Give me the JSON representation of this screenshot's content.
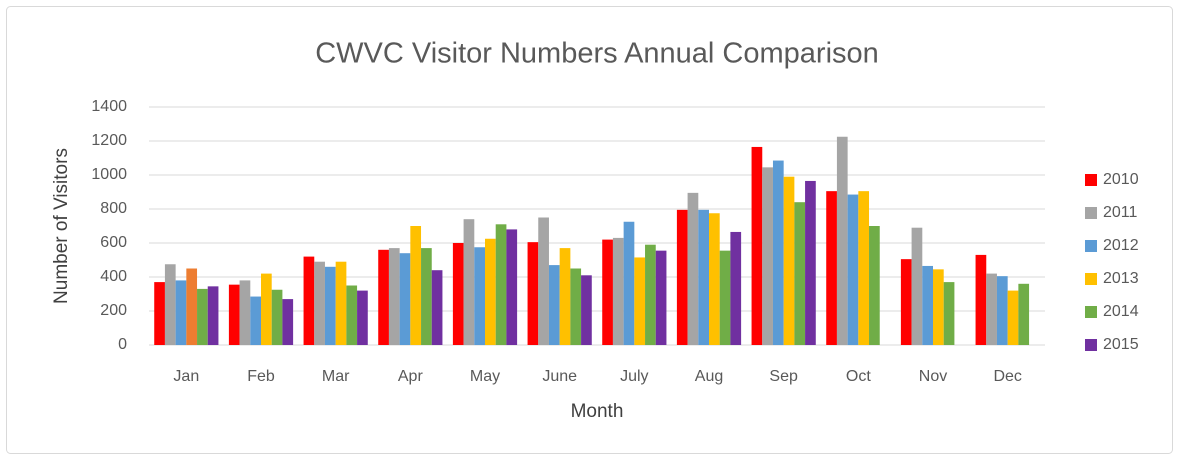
{
  "chart_data": {
    "type": "bar",
    "title": "CWVC Visitor Numbers Annual Comparison",
    "x_label": "Month",
    "y_label": "Number of Visitors",
    "categories": [
      "Jan",
      "Feb",
      "Mar",
      "Apr",
      "May",
      "June",
      "July",
      "Aug",
      "Sep",
      "Oct",
      "Nov",
      "Dec"
    ],
    "series": [
      {
        "name": "2010",
        "color": "#FF0000",
        "values": [
          370,
          355,
          520,
          560,
          600,
          605,
          620,
          795,
          1165,
          905,
          505,
          530
        ]
      },
      {
        "name": "2011",
        "color": "#A5A5A5",
        "values": [
          475,
          380,
          490,
          570,
          740,
          750,
          630,
          895,
          1045,
          1225,
          690,
          420
        ]
      },
      {
        "name": "2012",
        "color": "#5B9BD5",
        "values": [
          380,
          285,
          460,
          540,
          575,
          470,
          725,
          795,
          1085,
          885,
          465,
          405
        ]
      },
      {
        "name": "2013",
        "color": "#FFC000",
        "values": [
          450,
          420,
          490,
          700,
          625,
          570,
          515,
          775,
          990,
          905,
          445,
          320
        ],
        "point_color_overrides": [
          {
            "index": 0,
            "color": "#ED7D31"
          }
        ]
      },
      {
        "name": "2014",
        "color": "#70AD47",
        "values": [
          330,
          325,
          350,
          570,
          710,
          450,
          590,
          555,
          840,
          700,
          370,
          360
        ]
      },
      {
        "name": "2015",
        "color": "#7030A0",
        "values": [
          345,
          270,
          320,
          440,
          680,
          410,
          555,
          665,
          965,
          null,
          null,
          null
        ]
      }
    ],
    "ylim": [
      0,
      1400
    ],
    "yticks": [
      0,
      200,
      400,
      600,
      800,
      1000,
      1200,
      1400
    ],
    "grid": true,
    "legend": "right"
  }
}
